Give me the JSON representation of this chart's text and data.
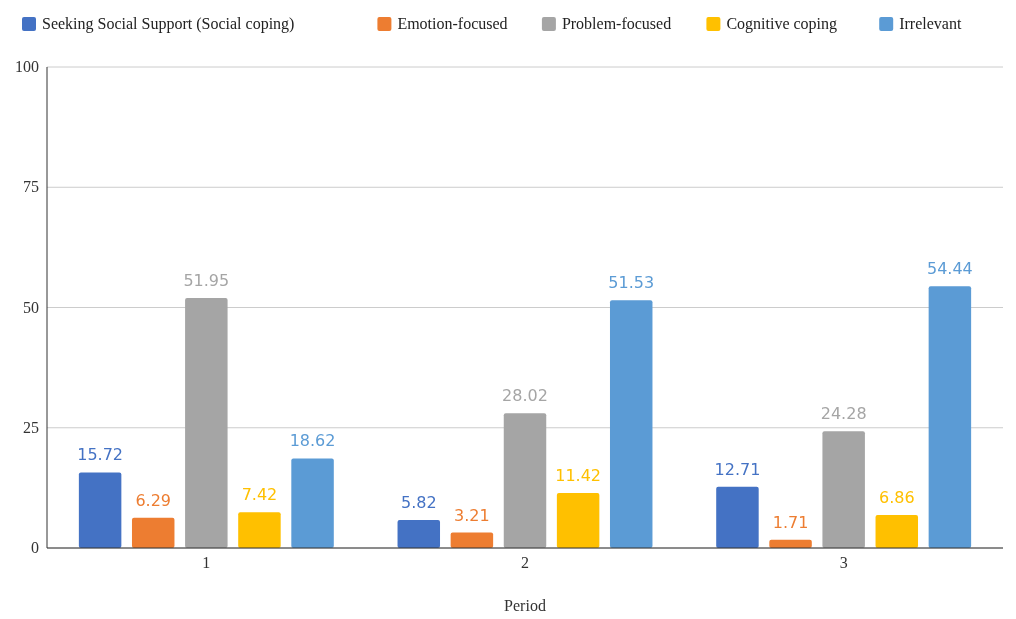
{
  "chart_data": {
    "type": "bar",
    "xlabel": "Period",
    "categories": [
      "1",
      "2",
      "3"
    ],
    "series": [
      {
        "name": "Seeking Social Support (Social coping)",
        "color": "#4472c4",
        "values": [
          15.72,
          5.82,
          12.71
        ]
      },
      {
        "name": "Emotion-focused",
        "color": "#ed7d31",
        "values": [
          6.29,
          3.21,
          1.71
        ]
      },
      {
        "name": "Problem-focused",
        "color": "#a5a5a5",
        "values": [
          51.95,
          28.02,
          24.28
        ]
      },
      {
        "name": "Cognitive coping",
        "color": "#ffc000",
        "values": [
          7.42,
          11.42,
          6.86
        ]
      },
      {
        "name": "Irrelevant",
        "color": "#5b9bd5",
        "values": [
          18.62,
          51.53,
          54.44
        ]
      }
    ],
    "ylim": [
      0,
      100
    ],
    "yticks": [
      0,
      25,
      50,
      75,
      100
    ],
    "grid": "y",
    "legend": "top",
    "data_labels": true
  }
}
